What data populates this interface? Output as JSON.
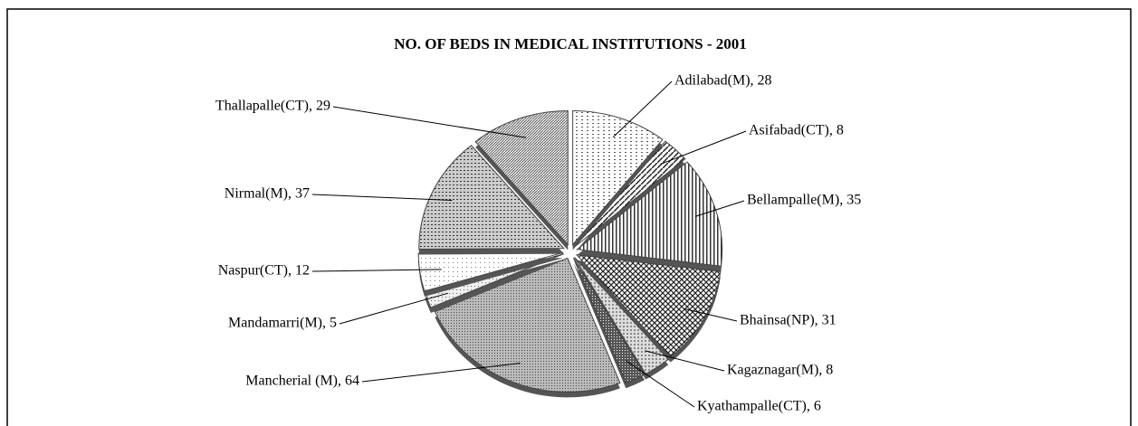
{
  "chart_data": {
    "type": "pie",
    "title": "NO. OF BEDS IN MEDICAL INSTITUTIONS - 2001",
    "categories": [
      "Adilabad(M)",
      "Asifabad(CT)",
      "Bellampalle(M)",
      "Bhainsa(NP)",
      "Kagaznagar(M)",
      "Kyathampalle(CT)",
      "Mancherial (M)",
      "Mandamarri(M)",
      "Naspur(CT)",
      "Nirmal(M)",
      "Thallapalle(CT)"
    ],
    "values": [
      28,
      8,
      35,
      31,
      8,
      6,
      64,
      5,
      12,
      37,
      29
    ],
    "value_labels": [
      "Adilabad(M), 28",
      "Asifabad(CT), 8",
      "Bellampalle(M), 35",
      "Bhainsa(NP), 31",
      "Kagaznagar(M), 8",
      "Kyathampalle(CT), 6",
      "Mancherial (M), 64",
      "Mandamarri(M), 5",
      "Naspur(CT), 12",
      "Nirmal(M), 37",
      "Thallapalle(CT), 29"
    ]
  }
}
